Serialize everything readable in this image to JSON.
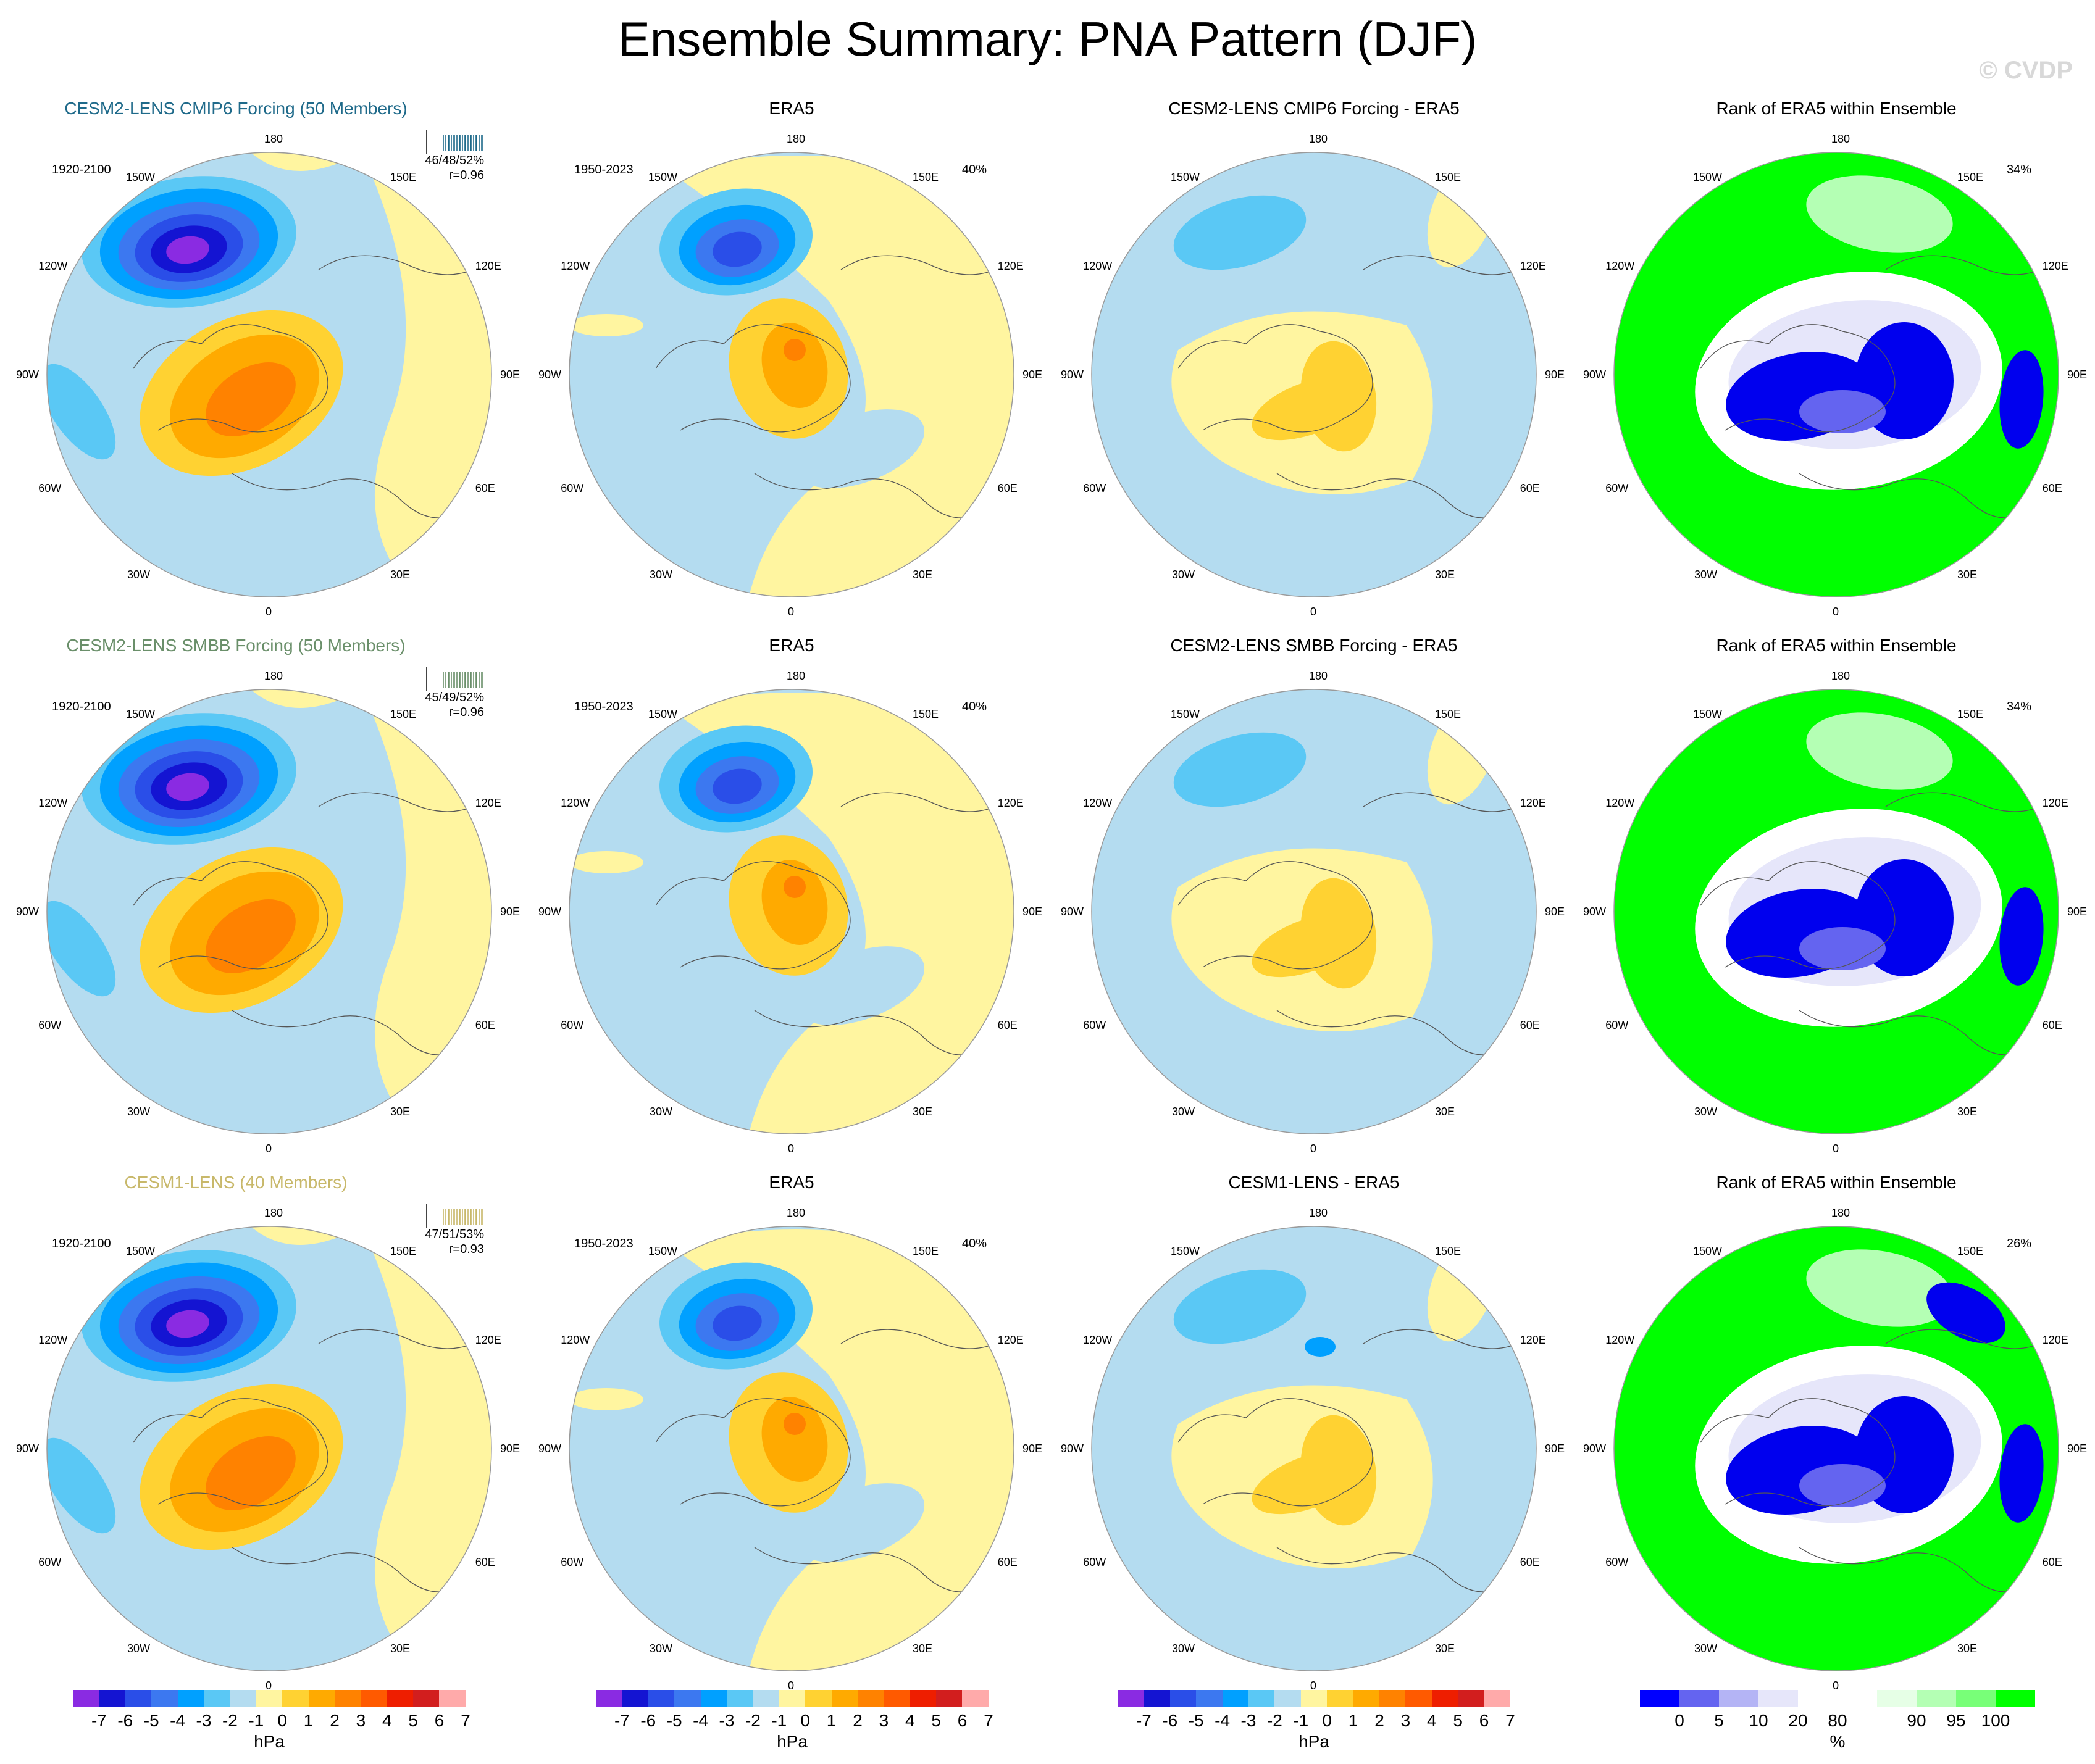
{
  "title": "Ensemble Summary: PNA Pattern (DJF)",
  "watermark": "© CVDP",
  "lon_labels": [
    "180",
    "150E",
    "120E",
    "90E",
    "60E",
    "30E",
    "0",
    "30W",
    "60W",
    "90W",
    "120W",
    "150W"
  ],
  "rows": [
    {
      "model": {
        "title": "CESM2-LENS CMIP6 Forcing (50 Members)",
        "title_color": "#1f6a8a",
        "period": "1920-2100",
        "stats": "46/48/52%",
        "corr": "r=0.96",
        "strip_color": "#1f6a8a"
      },
      "obs": {
        "title": "ERA5",
        "period": "1950-2023",
        "pct": "40%"
      },
      "diff": {
        "title": "CESM2-LENS CMIP6 Forcing - ERA5"
      },
      "rank": {
        "title": "Rank of ERA5 within Ensemble",
        "pct": "34%"
      }
    },
    {
      "model": {
        "title": "CESM2-LENS SMBB Forcing (50 Members)",
        "title_color": "#6a8f6a",
        "period": "1920-2100",
        "stats": "45/49/52%",
        "corr": "r=0.96",
        "strip_color": "#6a8f6a"
      },
      "obs": {
        "title": "ERA5",
        "period": "1950-2023",
        "pct": "40%"
      },
      "diff": {
        "title": "CESM2-LENS SMBB Forcing - ERA5"
      },
      "rank": {
        "title": "Rank of ERA5 within Ensemble",
        "pct": "34%"
      }
    },
    {
      "model": {
        "title": "CESM1-LENS (40 Members)",
        "title_color": "#c8b86a",
        "period": "1920-2100",
        "stats": "47/51/53%",
        "corr": "r=0.93",
        "strip_color": "#c8b86a"
      },
      "obs": {
        "title": "ERA5",
        "period": "1950-2023",
        "pct": "40%"
      },
      "diff": {
        "title": "CESM1-LENS - ERA5"
      },
      "rank": {
        "title": "Rank of ERA5 within Ensemble",
        "pct": "26%"
      }
    }
  ],
  "colorbar_hpa": {
    "colors": [
      "#8a2be2",
      "#1414d2",
      "#2a4ee8",
      "#3c78f0",
      "#00a0ff",
      "#5ac8f5",
      "#b4dcf0",
      "#fff5a0",
      "#ffd232",
      "#ffaa00",
      "#ff8200",
      "#ff5a00",
      "#ee1e00",
      "#d21e1e",
      "#ffaaaa"
    ],
    "labels": [
      "-7",
      "-6",
      "-5",
      "-4",
      "-3",
      "-2",
      "-1",
      "0",
      "1",
      "2",
      "3",
      "4",
      "5",
      "6",
      "7"
    ],
    "unit": "hPa"
  },
  "colorbar_rank": {
    "colors": [
      "#0000ff",
      "#6464f0",
      "#b4b4f5",
      "#e6e6fa",
      "#ffffff",
      "#ffffff",
      "#e6ffe6",
      "#b4ffb4",
      "#78ff78",
      "#00ff00"
    ],
    "labels": [
      "0",
      "5",
      "10",
      "20",
      "80",
      "90",
      "95",
      "100"
    ],
    "unit": "%"
  },
  "colors": {
    "neg_light": "#b4dcf0",
    "pos_light": "#fff5a0",
    "green": "#00ff00",
    "blue_rank": "#0000ee",
    "white": "#ffffff"
  }
}
